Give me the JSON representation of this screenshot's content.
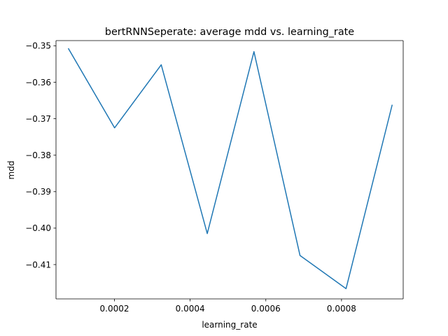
{
  "chart_data": {
    "type": "line",
    "title": "bertRNNSeperate: average mdd vs. learning_rate",
    "xlabel": "learning_rate",
    "ylabel": "mdd",
    "xlim": [
      4.55e-05,
      0.000963
    ],
    "ylim": [
      -0.41941,
      -0.34857
    ],
    "x_ticks": [
      0.0002,
      0.0004,
      0.0006,
      0.0008
    ],
    "x_tick_labels": [
      "0.0002",
      "0.0004",
      "0.0006",
      "0.0008"
    ],
    "y_ticks": [
      -0.35,
      -0.36,
      -0.37,
      -0.38,
      -0.39,
      -0.4,
      -0.41
    ],
    "y_tick_labels": [
      "−0.35",
      "−0.36",
      "−0.37",
      "−0.38",
      "−0.39",
      "−0.40",
      "−0.41"
    ],
    "grid": false,
    "series": [
      {
        "color": "#1f77b4",
        "x": [
          7.86e-05,
          0.0002003,
          0.0003236,
          0.0004452,
          0.0005686,
          0.0006903,
          0.000812,
          0.0009336
        ],
        "y": [
          -0.3508,
          -0.3725,
          -0.3552,
          -0.4015,
          -0.3516,
          -0.4075,
          -0.4166,
          -0.3663
        ]
      }
    ]
  }
}
